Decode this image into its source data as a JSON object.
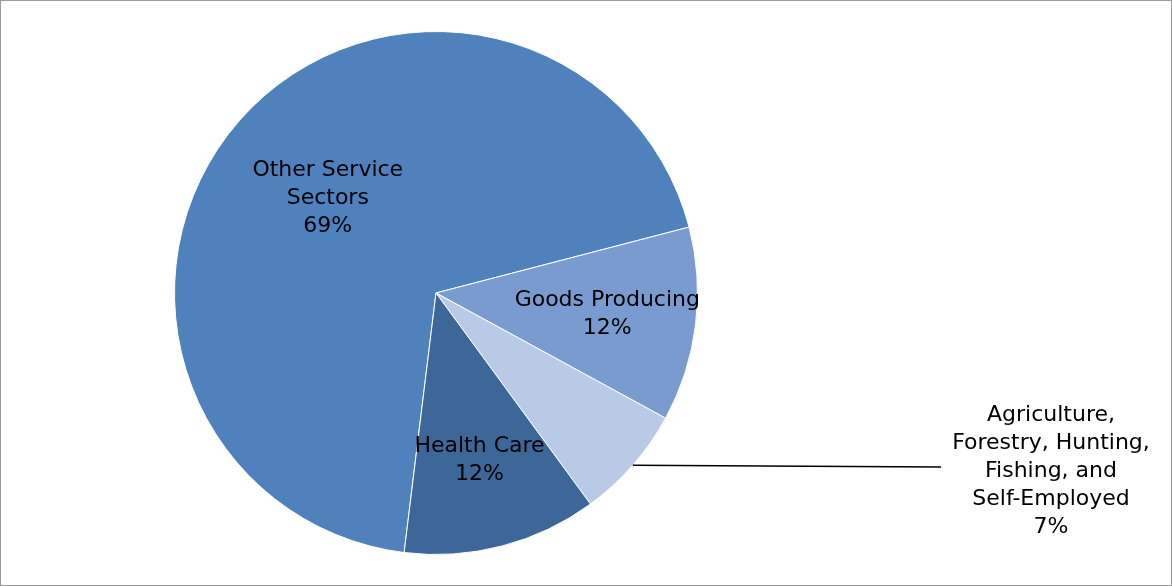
{
  "chart_data": {
    "type": "pie",
    "categories": [
      "Other Service Sectors",
      "Goods Producing",
      "Agriculture, Forestry, Hunting, Fishing, and Self-Employed",
      "Health Care"
    ],
    "values": [
      69,
      12,
      7,
      12
    ],
    "colors": [
      "#4f81bd",
      "#7a9bd0",
      "#b9cae6",
      "#3d6699"
    ],
    "value_labels": [
      "69%",
      "12%",
      "7%",
      "12%"
    ],
    "legend": false
  }
}
